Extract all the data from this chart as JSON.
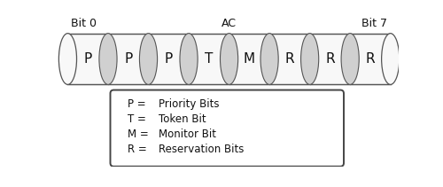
{
  "labels": [
    "P",
    "P",
    "P",
    "T",
    "M",
    "R",
    "R",
    "R"
  ],
  "n_bits": 8,
  "bit0_label": "Bit 0",
  "bit7_label": "Bit 7",
  "ac_label": "AC",
  "legend_lines": [
    [
      "P = ",
      "Priority Bits"
    ],
    [
      "T = ",
      "Token Bit"
    ],
    [
      "M = ",
      "Monitor Bit"
    ],
    [
      "R = ",
      "Reservation Bits"
    ]
  ],
  "cylinder_fill": "#f8f8f8",
  "cylinder_edge_color": "#555555",
  "ellipse_shade": "#d0d0d0",
  "background_color": "#ffffff",
  "text_color": "#111111",
  "legend_box_color": "#ffffff",
  "legend_box_edge": "#444444",
  "label_fontsize": 11,
  "header_fontsize": 9,
  "legend_fontsize": 8.5
}
